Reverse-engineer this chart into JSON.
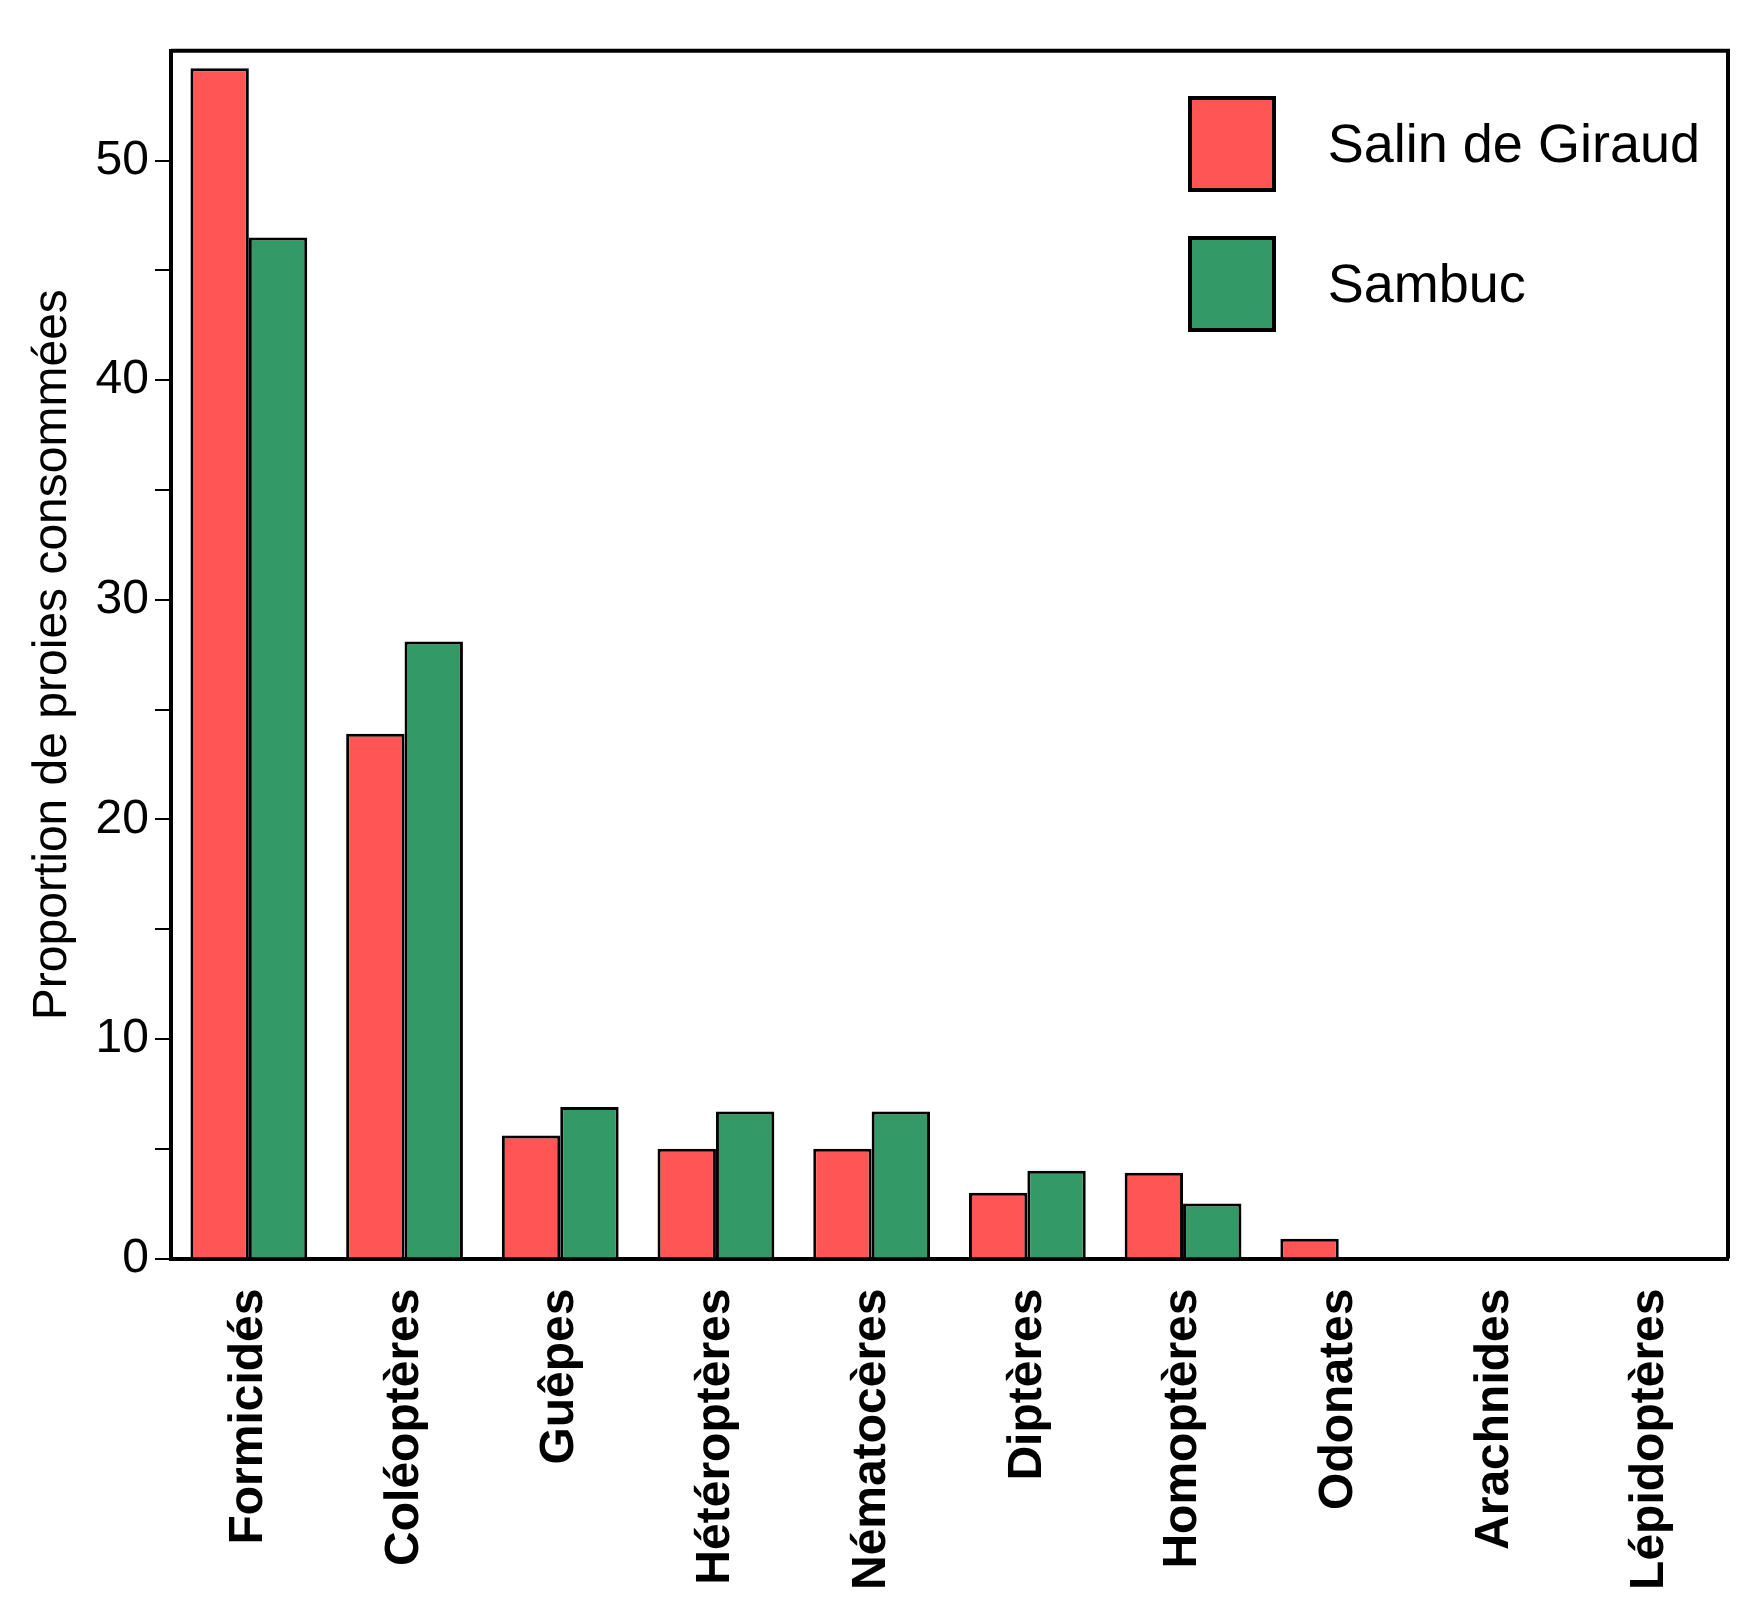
{
  "chart_data": {
    "type": "bar",
    "ylabel": "Proportion de proies consommées",
    "categories": [
      "Formicidés",
      "Coléoptères",
      "Guêpes",
      "Hétéroptères",
      "Nématocères",
      "Diptères",
      "Homoptères",
      "Odonates",
      "Arachnides",
      "Lépidoptères"
    ],
    "series": [
      {
        "name": "Salin de Giraud",
        "color": "#ff5555",
        "values": [
          54.2,
          23.9,
          5.6,
          5.0,
          5.0,
          3.0,
          3.9,
          0.9,
          0,
          0
        ]
      },
      {
        "name": "Sambuc",
        "color": "#339966",
        "values": [
          46.5,
          28.1,
          6.9,
          6.7,
          6.7,
          4.0,
          2.5,
          0,
          0,
          0
        ]
      }
    ],
    "ylim": [
      0,
      55
    ],
    "yticks": [
      0,
      {
        "value": 5,
        "label": null
      },
      10,
      {
        "value": 15,
        "label": null
      },
      20,
      {
        "value": 25,
        "label": null
      },
      30,
      {
        "value": 35,
        "label": null
      },
      40,
      {
        "value": 45,
        "label": null
      },
      50
    ],
    "grid": false,
    "legend": "top right"
  }
}
